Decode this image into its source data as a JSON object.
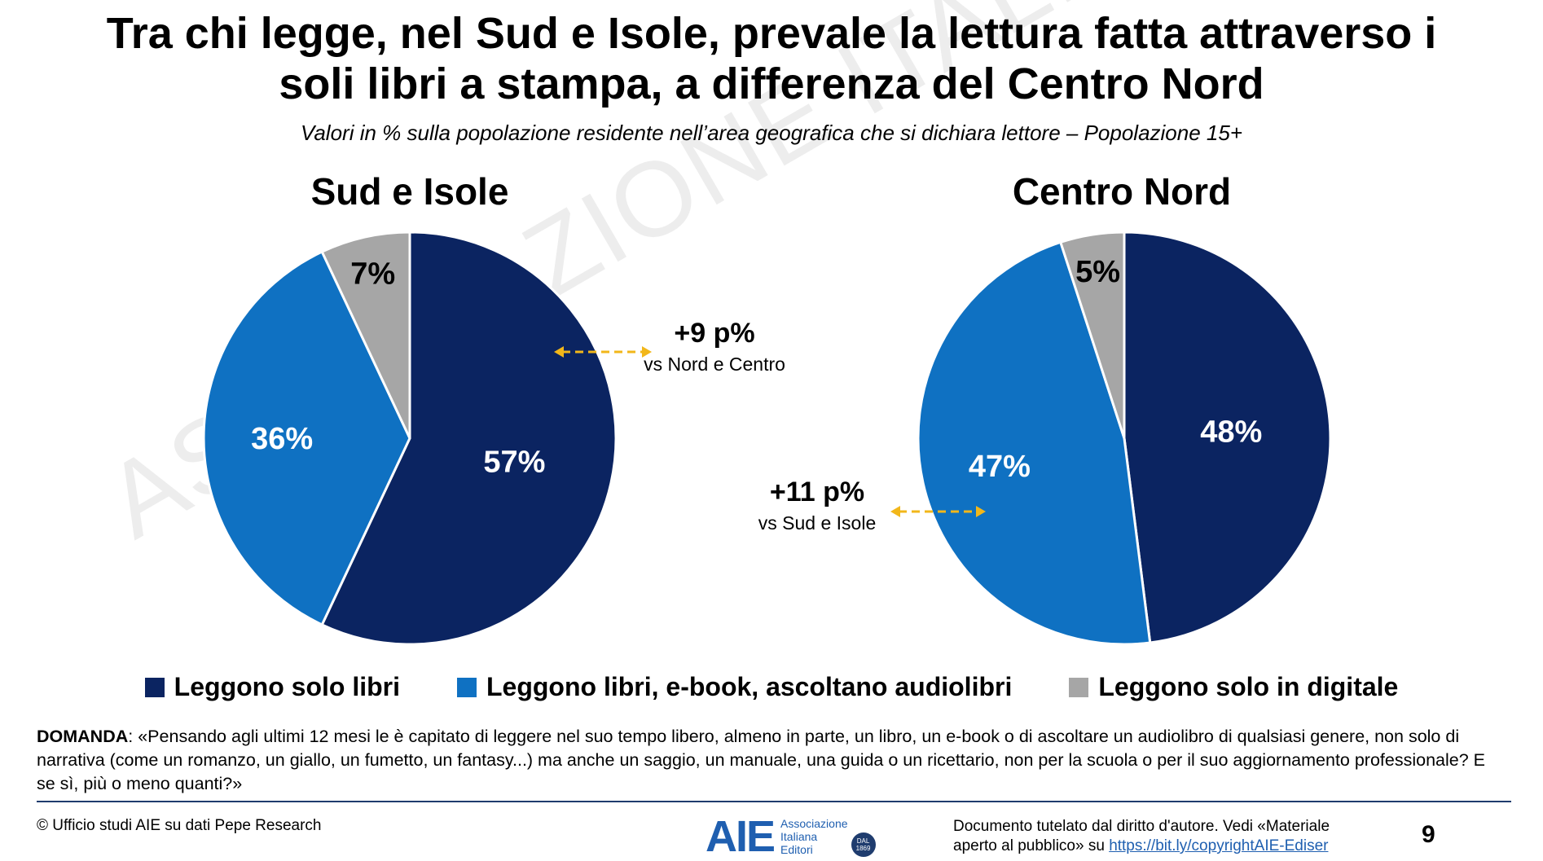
{
  "header": {
    "title_line1": "Tra chi legge, nel Sud e Isole, prevale la lettura fatta attraverso i",
    "title_line2": "soli libri a stampa, a differenza del Centro Nord",
    "subtitle": "Valori in % sulla popolazione residente nell’area geografica che si dichiara lettore – Popolazione 15+"
  },
  "chart_data": [
    {
      "type": "pie",
      "title": "Sud e Isole",
      "categories": [
        "Leggono solo libri",
        "Leggono libri, e-book, ascoltano audiolibri",
        "Leggono solo in digitale"
      ],
      "values": [
        57,
        36,
        7
      ],
      "data_labels": [
        "57%",
        "36%",
        "7%"
      ],
      "colors": [
        "#0b2461",
        "#0f71c2",
        "#a6a6a6"
      ],
      "annotation": {
        "value": "+9 p%",
        "note": "vs Nord e Centro"
      }
    },
    {
      "type": "pie",
      "title": "Centro Nord",
      "categories": [
        "Leggono solo libri",
        "Leggono libri, e-book, ascoltano audiolibri",
        "Leggono solo in digitale"
      ],
      "values": [
        48,
        47,
        5
      ],
      "data_labels": [
        "48%",
        "47%",
        "5%"
      ],
      "colors": [
        "#0b2461",
        "#0f71c2",
        "#a6a6a6"
      ],
      "annotation": {
        "value": "+11 p%",
        "note": "vs Sud e Isole"
      }
    }
  ],
  "legend": {
    "placement": "bottom",
    "items": [
      {
        "label": "Leggono solo libri",
        "color": "#0b2461"
      },
      {
        "label": "Leggono libri, e-book, ascoltano audiolibri",
        "color": "#0f71c2"
      },
      {
        "label": "Leggono solo in digitale",
        "color": "#a6a6a6"
      }
    ]
  },
  "question": {
    "label": "DOMANDA",
    "text": ": «Pensando agli ultimi 12 mesi le è capitato di leggere nel suo tempo libero, almeno in parte, un libro, un e-book o di ascoltare un audiolibro di qualsiasi genere, non solo di narrativa (come un romanzo, un giallo, un fumetto, un fantasy...) ma anche un saggio, un manuale, una guida o un ricettario, non per la scuola o per il suo aggiornamento professionale? E se sì, più o meno quanti?»"
  },
  "footer": {
    "source": "© Ufficio studi AIE su dati Pepe Research",
    "logo_mark": "AIE",
    "logo_text": [
      "Associazione",
      "Italiana",
      "Editori"
    ],
    "logo_badge": [
      "DAL",
      "1869"
    ],
    "copyright_text": "Documento tutelato dal diritto d'autore. Vedi «Materiale aperto al pubblico» su ",
    "copyright_link": "https://bit.ly/copyrightAIE-Ediser",
    "page_number": "9"
  },
  "watermark": "ASSOCIAZIONE ITALIANA EDITORI",
  "colors": {
    "arrow": "#f2b71a",
    "accent": "#1f3c6e"
  }
}
